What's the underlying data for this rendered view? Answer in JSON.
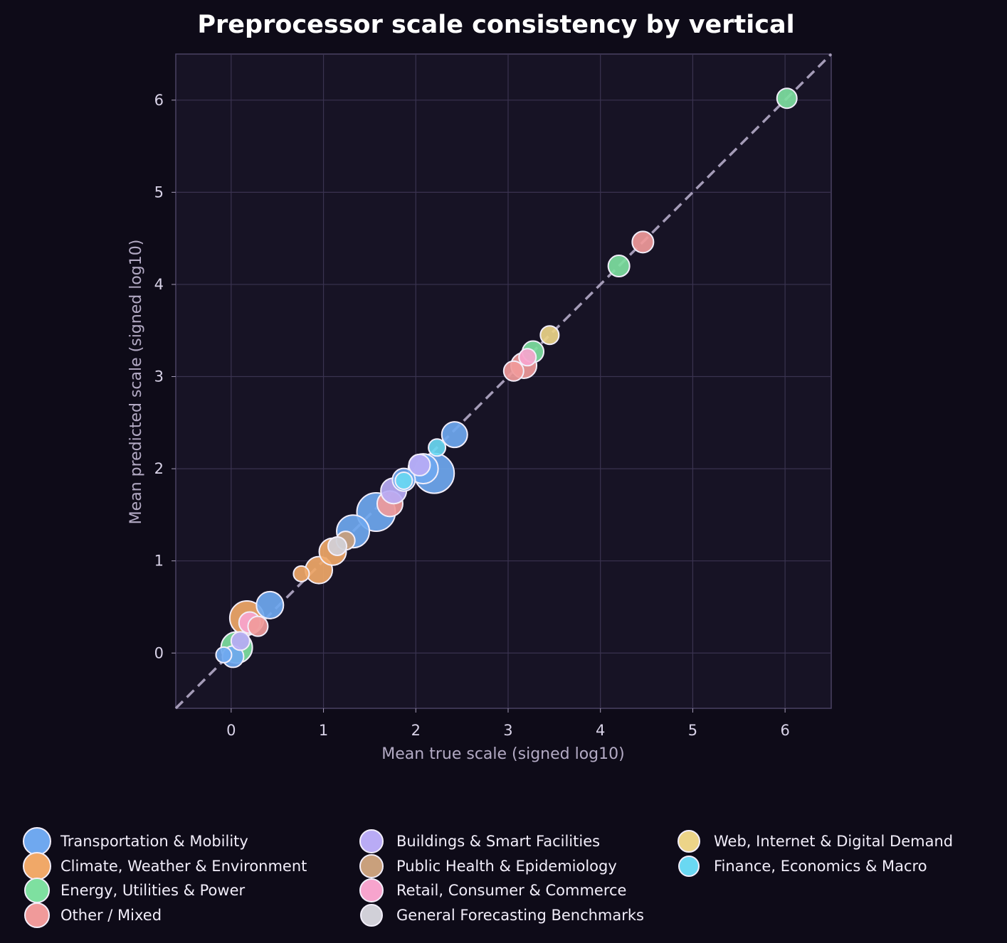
{
  "chart_data": {
    "type": "scatter",
    "title": "Preprocessor scale consistency by vertical",
    "xlabel": "Mean true scale (signed log10)",
    "ylabel": "Mean predicted scale (signed log10)",
    "xlim": [
      -0.6,
      6.5
    ],
    "ylim": [
      -0.6,
      6.5
    ],
    "xticks": [
      0,
      1,
      2,
      3,
      4,
      5,
      6
    ],
    "yticks": [
      0,
      1,
      2,
      3,
      4,
      5,
      6
    ],
    "grid": true,
    "reference_line": "y = x (dashed)",
    "legend_position": "bottom",
    "series": [
      {
        "name": "Transportation & Mobility",
        "color": "#6fa8ef",
        "points": [
          {
            "x": -0.08,
            "y": -0.02,
            "size": 11
          },
          {
            "x": 0.02,
            "y": -0.04,
            "size": 15
          },
          {
            "x": 0.42,
            "y": 0.52,
            "size": 19
          },
          {
            "x": 1.32,
            "y": 1.32,
            "size": 23
          },
          {
            "x": 1.57,
            "y": 1.53,
            "size": 27
          },
          {
            "x": 1.87,
            "y": 1.88,
            "size": 16
          },
          {
            "x": 2.08,
            "y": 2.0,
            "size": 21
          },
          {
            "x": 2.2,
            "y": 1.95,
            "size": 28
          },
          {
            "x": 2.42,
            "y": 2.37,
            "size": 18
          }
        ]
      },
      {
        "name": "Climate, Weather & Environment",
        "color": "#f0a868",
        "points": [
          {
            "x": 0.17,
            "y": 0.38,
            "size": 24
          },
          {
            "x": 0.76,
            "y": 0.86,
            "size": 11
          },
          {
            "x": 0.95,
            "y": 0.9,
            "size": 19
          },
          {
            "x": 1.1,
            "y": 1.1,
            "size": 19
          }
        ]
      },
      {
        "name": "Energy, Utilities & Power",
        "color": "#7ee0a0",
        "points": [
          {
            "x": 0.06,
            "y": 0.06,
            "size": 22
          },
          {
            "x": 3.27,
            "y": 3.27,
            "size": 15
          },
          {
            "x": 4.2,
            "y": 4.2,
            "size": 15
          },
          {
            "x": 6.02,
            "y": 6.02,
            "size": 14
          }
        ]
      },
      {
        "name": "Other / Mixed",
        "color": "#f09a9a",
        "points": [
          {
            "x": 0.29,
            "y": 0.29,
            "size": 14
          },
          {
            "x": 1.72,
            "y": 1.62,
            "size": 18
          },
          {
            "x": 3.06,
            "y": 3.06,
            "size": 14
          },
          {
            "x": 3.17,
            "y": 3.12,
            "size": 18
          },
          {
            "x": 4.46,
            "y": 4.46,
            "size": 15
          }
        ]
      },
      {
        "name": "Buildings & Smart Facilities",
        "color": "#b9abf5",
        "points": [
          {
            "x": 0.1,
            "y": 0.13,
            "size": 13
          },
          {
            "x": 1.76,
            "y": 1.76,
            "size": 18
          },
          {
            "x": 2.04,
            "y": 2.04,
            "size": 15
          }
        ]
      },
      {
        "name": "Public Health & Epidemiology",
        "color": "#c9a07c",
        "points": [
          {
            "x": 1.24,
            "y": 1.22,
            "size": 13
          }
        ]
      },
      {
        "name": "Retail, Consumer & Commerce",
        "color": "#f7a4cd",
        "points": [
          {
            "x": 0.2,
            "y": 0.33,
            "size": 15
          },
          {
            "x": 3.21,
            "y": 3.21,
            "size": 12
          }
        ]
      },
      {
        "name": "General Forecasting Benchmarks",
        "color": "#d1d0d8",
        "points": [
          {
            "x": 1.15,
            "y": 1.16,
            "size": 13
          }
        ]
      },
      {
        "name": "Web, Internet & Digital Demand",
        "color": "#ecd488",
        "points": [
          {
            "x": 3.45,
            "y": 3.45,
            "size": 13
          }
        ]
      },
      {
        "name": "Finance, Economics & Macro",
        "color": "#6ad8f2",
        "points": [
          {
            "x": 1.87,
            "y": 1.87,
            "size": 12
          },
          {
            "x": 2.23,
            "y": 2.23,
            "size": 12
          }
        ]
      }
    ]
  }
}
